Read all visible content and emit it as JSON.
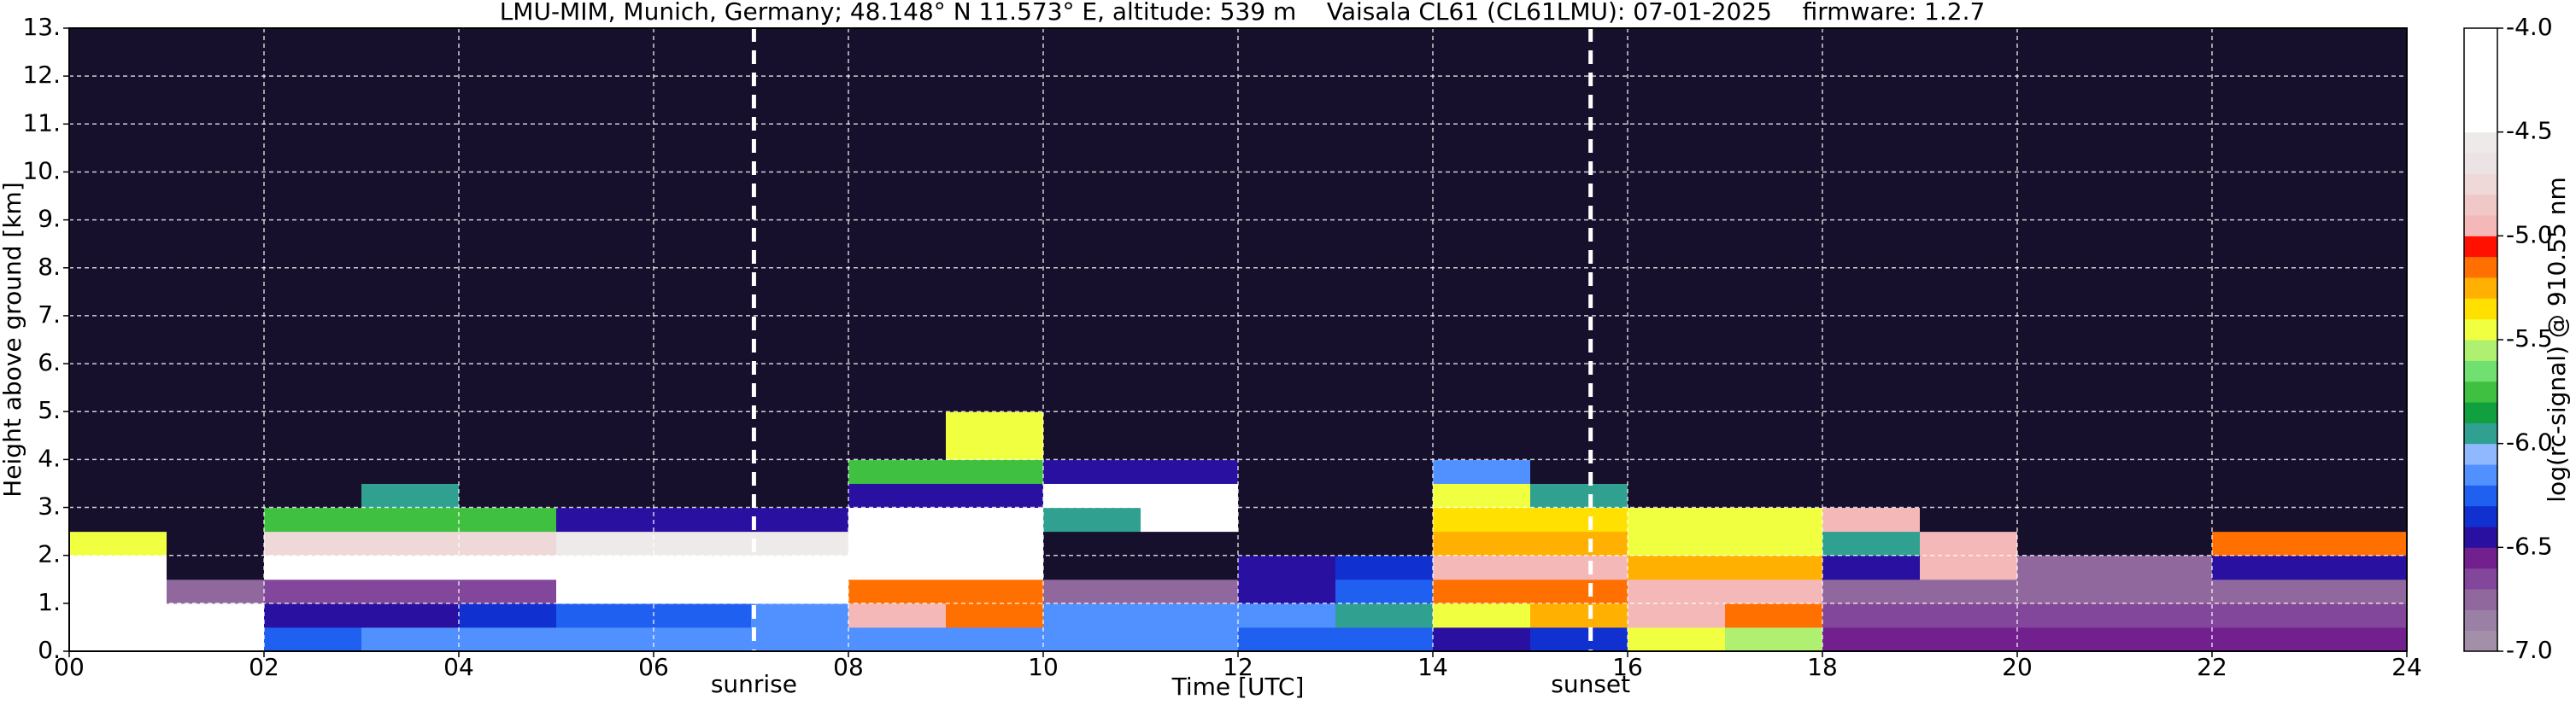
{
  "chart_data": {
    "type": "heatmap",
    "title": "LMU-MIM, Munich, Germany; 48.148° N 11.573° E, altitude: 539 m    Vaisala CL61 (CL61LMU): 07-01-2025    firmware: 1.2.7",
    "xlabel": "Time [UTC]",
    "ylabel": "Height above ground [km]",
    "xlim": [
      0,
      24
    ],
    "ylim": [
      0,
      13
    ],
    "xticks": [
      {
        "value": 0,
        "label": "00"
      },
      {
        "value": 2,
        "label": "02"
      },
      {
        "value": 4,
        "label": "04"
      },
      {
        "value": 6,
        "label": "06"
      },
      {
        "value": 8,
        "label": "08"
      },
      {
        "value": 10,
        "label": "10"
      },
      {
        "value": 12,
        "label": "12"
      },
      {
        "value": 14,
        "label": "14"
      },
      {
        "value": 16,
        "label": "16"
      },
      {
        "value": 18,
        "label": "18"
      },
      {
        "value": 20,
        "label": "20"
      },
      {
        "value": 22,
        "label": "22"
      },
      {
        "value": 24,
        "label": "24"
      }
    ],
    "yticks": [
      {
        "value": 0,
        "label": "0."
      },
      {
        "value": 1,
        "label": "1."
      },
      {
        "value": 2,
        "label": "2."
      },
      {
        "value": 3,
        "label": "3."
      },
      {
        "value": 4,
        "label": "4."
      },
      {
        "value": 5,
        "label": "5."
      },
      {
        "value": 6,
        "label": "6."
      },
      {
        "value": 7,
        "label": "7."
      },
      {
        "value": 8,
        "label": "8."
      },
      {
        "value": 9,
        "label": "9."
      },
      {
        "value": 10,
        "label": "10."
      },
      {
        "value": 11,
        "label": "11."
      },
      {
        "value": 12,
        "label": "12."
      },
      {
        "value": 13,
        "label": "13."
      }
    ],
    "grid": true,
    "x_edges": [
      0,
      1,
      2,
      3,
      4,
      5,
      6,
      7,
      8,
      9,
      10,
      11,
      12,
      13,
      14,
      15,
      16,
      17,
      18,
      19,
      20,
      21,
      22,
      23,
      24
    ],
    "y_edges": [
      0,
      0.5,
      1,
      1.5,
      2,
      2.5,
      3,
      3.5,
      4,
      5,
      13
    ],
    "z": [
      [
        -4.2,
        -4.2,
        -6.3,
        -6.2,
        -6.2,
        -6.2,
        -6.2,
        -6.2,
        -6.2,
        -6.2,
        -6.2,
        -6.2,
        -6.3,
        -6.3,
        -6.5,
        -6.4,
        -5.5,
        -5.6,
        -6.6,
        -6.6,
        -6.6,
        -6.6,
        -6.6,
        -6.6
      ],
      [
        -4.3,
        -4.4,
        -6.5,
        -6.5,
        -6.4,
        -6.3,
        -6.3,
        -6.2,
        -5.0,
        -5.2,
        -6.2,
        -6.2,
        -6.2,
        -6.0,
        -5.5,
        -5.3,
        -5.0,
        -5.2,
        -6.7,
        -6.7,
        -6.7,
        -6.7,
        -6.7,
        -6.7
      ],
      [
        -4.3,
        -6.8,
        -6.7,
        -6.7,
        -6.7,
        -4.3,
        -4.3,
        -4.3,
        -5.2,
        -5.2,
        -6.8,
        -6.8,
        -6.5,
        -6.3,
        -5.2,
        -5.2,
        -5.0,
        -5.0,
        -6.8,
        -6.8,
        -6.8,
        -6.8,
        -6.8,
        -6.8
      ],
      [
        -4.5,
        -7.2,
        -4.3,
        -4.3,
        -4.3,
        -4.4,
        -4.4,
        -4.4,
        -4.5,
        -4.5,
        -7.2,
        -7.2,
        -6.5,
        -6.4,
        -5.0,
        -5.0,
        -5.3,
        -5.3,
        -6.5,
        -5.0,
        -6.8,
        -6.8,
        -6.5,
        -6.5
      ],
      [
        -5.5,
        -7.2,
        -4.8,
        -4.8,
        -4.8,
        -4.6,
        -4.6,
        -4.6,
        -4.3,
        -4.3,
        -7.3,
        -7.3,
        -7.2,
        -7.2,
        -5.3,
        -5.3,
        -5.5,
        -5.5,
        -6.0,
        -5.0,
        -7.4,
        -7.4,
        -5.2,
        -5.2
      ],
      [
        -7.2,
        -7.2,
        -5.8,
        -5.8,
        -5.8,
        -6.5,
        -6.5,
        -6.5,
        -4.5,
        -4.5,
        -6.0,
        -4.5,
        -7.3,
        -7.3,
        -5.4,
        -5.4,
        -5.5,
        -5.5,
        -5.0,
        -7.4,
        -7.4,
        -7.4,
        -7.4,
        -7.4
      ],
      [
        -7.4,
        -7.4,
        -7.4,
        -6.0,
        -7.3,
        -7.3,
        -7.3,
        -7.3,
        -6.5,
        -6.5,
        -4.5,
        -4.5,
        -7.4,
        -7.4,
        -5.5,
        -6.0,
        -7.2,
        -7.2,
        -7.4,
        -7.4,
        -7.4,
        -7.4,
        -7.4,
        -7.4
      ],
      [
        -7.4,
        -7.4,
        -7.4,
        -7.4,
        -7.4,
        -7.4,
        -7.4,
        -7.4,
        -5.8,
        -5.8,
        -6.5,
        -6.5,
        -7.4,
        -7.4,
        -6.2,
        -7.4,
        -7.4,
        -7.4,
        -7.4,
        -7.4,
        -7.4,
        -7.4,
        -7.4,
        -7.4
      ],
      [
        -7.3,
        -7.3,
        -7.3,
        -7.3,
        -7.3,
        -7.3,
        -7.3,
        -7.3,
        -7.3,
        -5.5,
        -7.3,
        -7.3,
        -7.3,
        -7.3,
        -7.3,
        -7.3,
        -7.3,
        -7.3,
        -7.3,
        -7.3,
        -7.3,
        -7.3,
        -7.3,
        -7.3
      ],
      [
        -7.2,
        -7.2,
        -7.2,
        -7.2,
        -7.2,
        -7.2,
        -7.2,
        -7.2,
        -7.2,
        -7.2,
        -7.2,
        -7.2,
        -7.2,
        -7.2,
        -7.2,
        -7.2,
        -7.2,
        -7.2,
        -7.2,
        -7.2,
        -7.2,
        -7.2,
        -7.2,
        -7.2
      ]
    ],
    "vlines": [
      {
        "x": 7.03,
        "label": "sunrise"
      },
      {
        "x": 15.62,
        "label": "sunset"
      }
    ],
    "colorbar": {
      "label": "log(rc-signal) @ 910.55 nm",
      "bounds": [
        -7.0,
        -6.9,
        -6.8,
        -6.7,
        -6.6,
        -6.5,
        -6.4,
        -6.3,
        -6.2,
        -6.1,
        -6.0,
        -5.9,
        -5.8,
        -5.7,
        -5.6,
        -5.5,
        -5.4,
        -5.3,
        -5.2,
        -5.1,
        -5.0,
        -4.9,
        -4.8,
        -4.7,
        -4.6,
        -4.5,
        -4.4,
        -4.3,
        -4.2,
        -4.1,
        -4.0
      ],
      "colors": [
        "#a390a8",
        "#9a80a4",
        "#90689e",
        "#82469a",
        "#72208e",
        "#2a10a0",
        "#1030d0",
        "#2060f0",
        "#5090ff",
        "#90b8ff",
        "#30a090",
        "#10a040",
        "#40c040",
        "#70e070",
        "#b0f070",
        "#f0ff40",
        "#ffe000",
        "#ffb000",
        "#ff7000",
        "#ff1000",
        "#f4b8b8",
        "#f0c8c8",
        "#eed8d8",
        "#ece4e4",
        "#eeeaea",
        "#ffffff",
        "#ffffff",
        "#ffffff",
        "#ffffff",
        "#ffffff"
      ],
      "under_color": "#16102c",
      "over_color": "#ffffff",
      "ticks": [
        {
          "value": -7.0,
          "label": "-7.0"
        },
        {
          "value": -6.5,
          "label": "-6.5"
        },
        {
          "value": -6.0,
          "label": "-6.0"
        },
        {
          "value": -5.5,
          "label": "-5.5"
        },
        {
          "value": -5.0,
          "label": "-5.0"
        },
        {
          "value": -4.5,
          "label": "-4.5"
        },
        {
          "value": -4.0,
          "label": "-4.0"
        }
      ]
    }
  }
}
